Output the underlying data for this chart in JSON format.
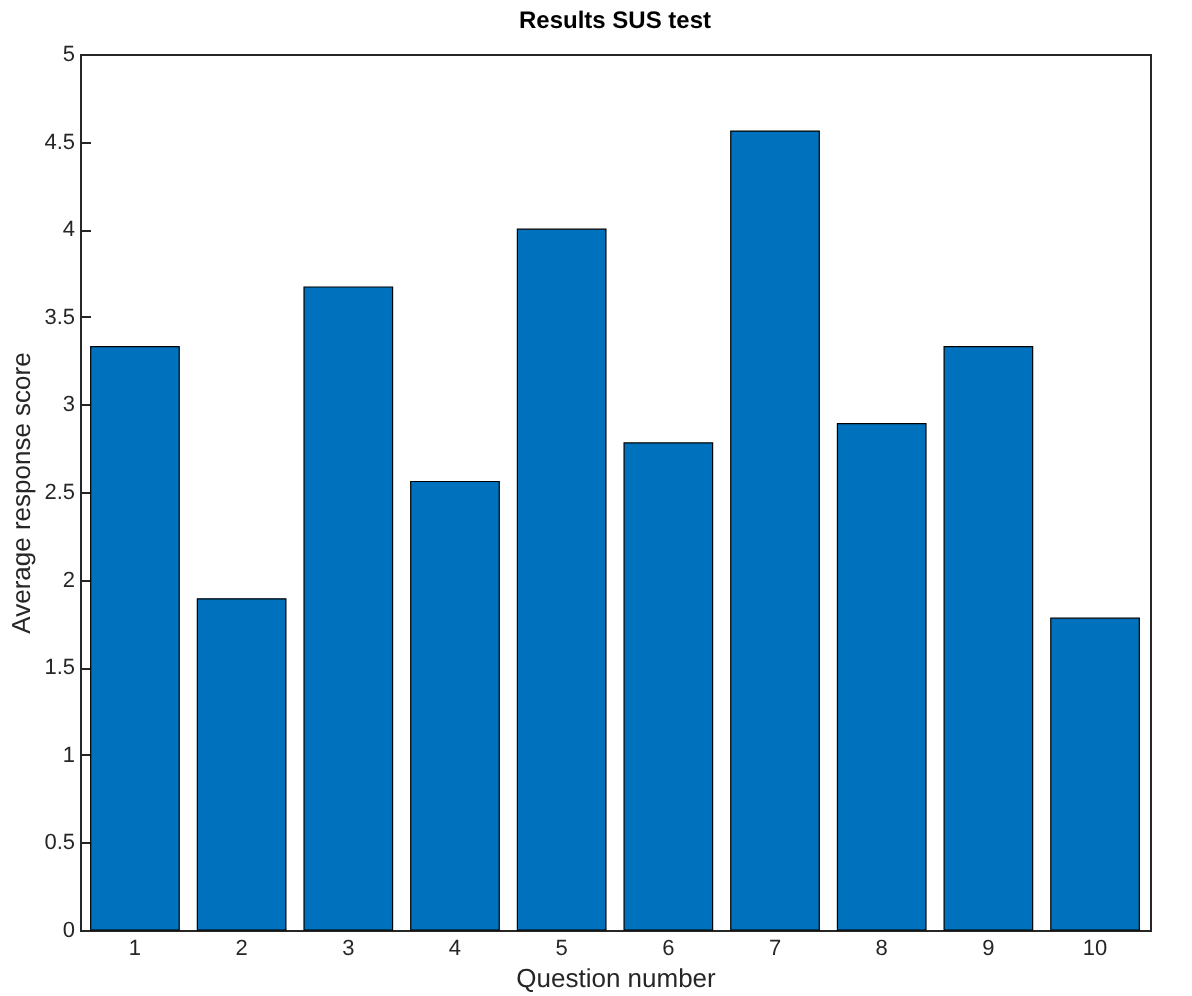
{
  "chart_data": {
    "type": "bar",
    "title": "Results SUS test",
    "xlabel": "Question number",
    "ylabel": "Average response score",
    "categories": [
      "1",
      "2",
      "3",
      "4",
      "5",
      "6",
      "7",
      "8",
      "9",
      "10"
    ],
    "values": [
      3.33,
      1.89,
      3.67,
      2.56,
      4.0,
      2.78,
      4.56,
      2.89,
      3.33,
      1.78
    ],
    "color": "#0072bd",
    "ylim": [
      0,
      5
    ],
    "yticks": [
      0,
      0.5,
      1,
      1.5,
      2,
      2.5,
      3,
      3.5,
      4,
      4.5,
      5
    ]
  }
}
